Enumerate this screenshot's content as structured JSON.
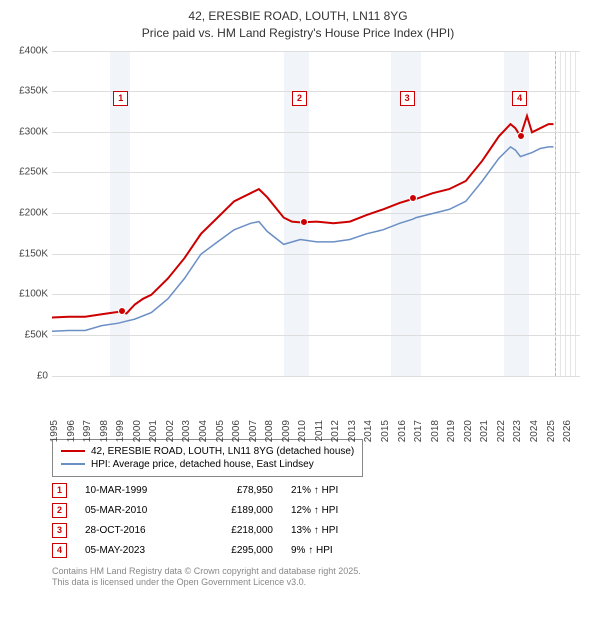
{
  "title_line1": "42, ERESBIE ROAD, LOUTH, LN11 8YG",
  "title_line2": "Price paid vs. HM Land Registry's House Price Index (HPI)",
  "chart": {
    "type": "line",
    "x_start": 1995,
    "x_end": 2026.9,
    "ylim": [
      0,
      400000
    ],
    "ytick_step": 50000,
    "ylabels": [
      "£0",
      "£50K",
      "£100K",
      "£150K",
      "£200K",
      "£250K",
      "£300K",
      "£350K",
      "£400K"
    ],
    "xticks": [
      1995,
      1996,
      1997,
      1998,
      1999,
      2000,
      2001,
      2002,
      2003,
      2004,
      2005,
      2006,
      2007,
      2008,
      2009,
      2010,
      2011,
      2012,
      2013,
      2014,
      2015,
      2016,
      2017,
      2018,
      2019,
      2020,
      2021,
      2022,
      2023,
      2024,
      2025,
      2026
    ],
    "grid_color": "#dddddd",
    "background_color": "#ffffff",
    "band_color": "#e8edf5",
    "bands": [
      {
        "from": 1998.5,
        "to": 1999.7
      },
      {
        "from": 2009.0,
        "to": 2010.5
      },
      {
        "from": 2015.5,
        "to": 2017.3
      },
      {
        "from": 2022.3,
        "to": 2023.8
      }
    ],
    "future_band": {
      "from": 2025.4,
      "to": 2026.9
    },
    "series": [
      {
        "name": "42, ERESBIE ROAD, LOUTH, LN11 8YG (detached house)",
        "color": "#cc0000",
        "width": 2,
        "points": [
          [
            1995,
            72000
          ],
          [
            1996,
            73000
          ],
          [
            1997,
            73000
          ],
          [
            1998,
            76000
          ],
          [
            1999,
            78950
          ],
          [
            1999.5,
            77000
          ],
          [
            2000,
            88000
          ],
          [
            2000.5,
            95000
          ],
          [
            2001,
            100000
          ],
          [
            2002,
            120000
          ],
          [
            2003,
            145000
          ],
          [
            2004,
            175000
          ],
          [
            2005,
            195000
          ],
          [
            2006,
            215000
          ],
          [
            2007,
            225000
          ],
          [
            2007.5,
            230000
          ],
          [
            2008,
            220000
          ],
          [
            2009,
            195000
          ],
          [
            2009.5,
            190000
          ],
          [
            2010,
            189000
          ],
          [
            2011,
            190000
          ],
          [
            2012,
            188000
          ],
          [
            2013,
            190000
          ],
          [
            2014,
            198000
          ],
          [
            2015,
            205000
          ],
          [
            2016,
            213000
          ],
          [
            2016.8,
            218000
          ],
          [
            2017,
            218000
          ],
          [
            2018,
            225000
          ],
          [
            2019,
            230000
          ],
          [
            2020,
            240000
          ],
          [
            2021,
            265000
          ],
          [
            2022,
            295000
          ],
          [
            2022.7,
            310000
          ],
          [
            2023,
            305000
          ],
          [
            2023.3,
            295000
          ],
          [
            2023.7,
            320000
          ],
          [
            2024,
            300000
          ],
          [
            2024.5,
            305000
          ],
          [
            2025,
            310000
          ],
          [
            2025.3,
            310000
          ]
        ]
      },
      {
        "name": "HPI: Average price, detached house, East Lindsey",
        "color": "#6a8fc5",
        "width": 1.5,
        "points": [
          [
            1995,
            55000
          ],
          [
            1996,
            56000
          ],
          [
            1997,
            56000
          ],
          [
            1998,
            62000
          ],
          [
            1999,
            65000
          ],
          [
            2000,
            70000
          ],
          [
            2001,
            78000
          ],
          [
            2002,
            95000
          ],
          [
            2003,
            120000
          ],
          [
            2004,
            150000
          ],
          [
            2005,
            165000
          ],
          [
            2006,
            180000
          ],
          [
            2007,
            188000
          ],
          [
            2007.5,
            190000
          ],
          [
            2008,
            178000
          ],
          [
            2009,
            162000
          ],
          [
            2010,
            168000
          ],
          [
            2011,
            165000
          ],
          [
            2012,
            165000
          ],
          [
            2013,
            168000
          ],
          [
            2014,
            175000
          ],
          [
            2015,
            180000
          ],
          [
            2016,
            188000
          ],
          [
            2016.8,
            193000
          ],
          [
            2017,
            195000
          ],
          [
            2018,
            200000
          ],
          [
            2019,
            205000
          ],
          [
            2020,
            215000
          ],
          [
            2021,
            240000
          ],
          [
            2022,
            268000
          ],
          [
            2022.7,
            282000
          ],
          [
            2023,
            278000
          ],
          [
            2023.3,
            270000
          ],
          [
            2024,
            275000
          ],
          [
            2024.5,
            280000
          ],
          [
            2025,
            282000
          ],
          [
            2025.3,
            282000
          ]
        ]
      }
    ],
    "markers": [
      {
        "n": 1,
        "x": 1999.2,
        "y": 78950,
        "box_x": 1998.7,
        "box_top": 40
      },
      {
        "n": 2,
        "x": 2010.2,
        "y": 189000,
        "box_x": 2009.5,
        "box_top": 40
      },
      {
        "n": 3,
        "x": 2016.8,
        "y": 218000,
        "box_x": 2016.0,
        "box_top": 40
      },
      {
        "n": 4,
        "x": 2023.35,
        "y": 295000,
        "box_x": 2022.8,
        "box_top": 40
      }
    ]
  },
  "legend": [
    {
      "color": "#cc0000",
      "label": "42, ERESBIE ROAD, LOUTH, LN11 8YG (detached house)"
    },
    {
      "color": "#6a8fc5",
      "label": "HPI: Average price, detached house, East Lindsey"
    }
  ],
  "transactions": [
    {
      "n": "1",
      "date": "10-MAR-1999",
      "price": "£78,950",
      "pct": "21% ↑ HPI"
    },
    {
      "n": "2",
      "date": "05-MAR-2010",
      "price": "£189,000",
      "pct": "12% ↑ HPI"
    },
    {
      "n": "3",
      "date": "28-OCT-2016",
      "price": "£218,000",
      "pct": "13% ↑ HPI"
    },
    {
      "n": "4",
      "date": "05-MAY-2023",
      "price": "£295,000",
      "pct": "9% ↑ HPI"
    }
  ],
  "footer_line1": "Contains HM Land Registry data © Crown copyright and database right 2025.",
  "footer_line2": "This data is licensed under the Open Government Licence v3.0."
}
